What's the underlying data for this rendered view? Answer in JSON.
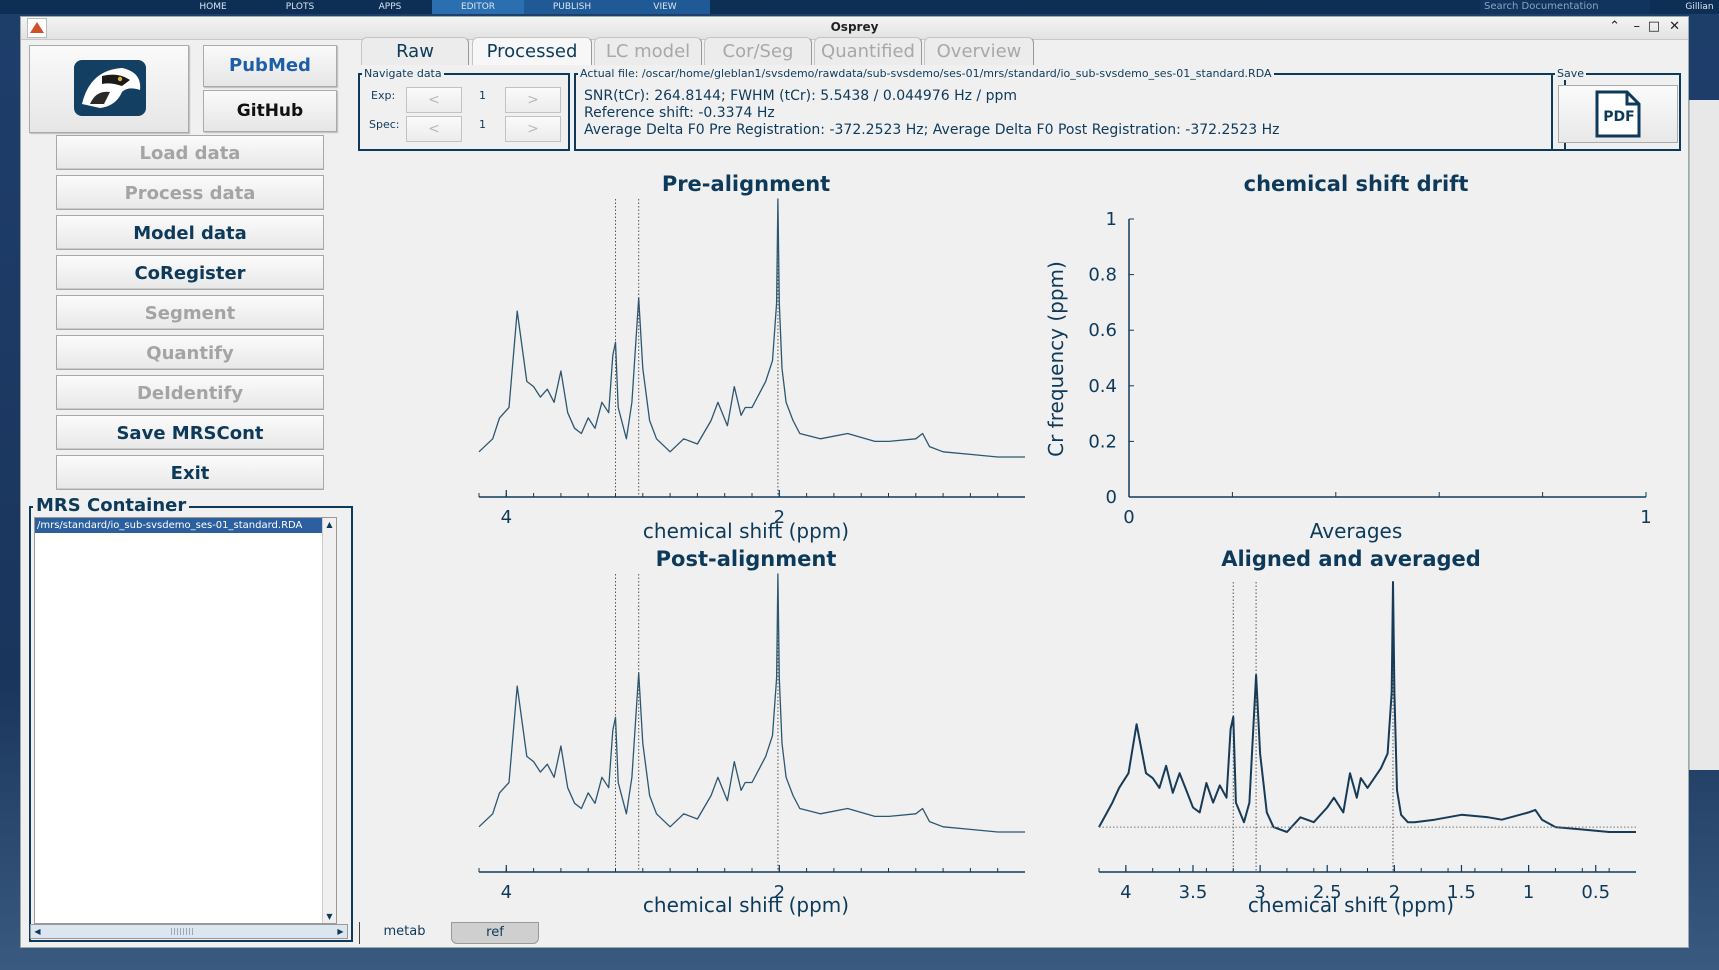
{
  "topbar": {
    "tabs": [
      "HOME",
      "PLOTS",
      "APPS",
      "EDITOR",
      "PUBLISH",
      "VIEW"
    ],
    "search_placeholder": "Search Documentation",
    "user": "Gillian"
  },
  "window": {
    "title": "Osprey"
  },
  "left_panel": {
    "logo_alt": "osprey-logo",
    "pubmed_label": "PubMed",
    "github_label": "GitHub",
    "buttons": [
      {
        "label": "Load data",
        "enabled": false
      },
      {
        "label": "Process data",
        "enabled": false
      },
      {
        "label": "Model data",
        "enabled": true
      },
      {
        "label": "CoRegister",
        "enabled": true
      },
      {
        "label": "Segment",
        "enabled": false
      },
      {
        "label": "Quantify",
        "enabled": false
      },
      {
        "label": "DeIdentify",
        "enabled": false
      },
      {
        "label": "Save MRSCont",
        "enabled": true
      },
      {
        "label": "Exit",
        "enabled": true
      }
    ],
    "container_title": "MRS Container",
    "container_item": "/mrs/standard/io_sub-svsdemo_ses-01_standard.RDA"
  },
  "tabs": [
    "Raw",
    "Processed",
    "LC model",
    "Cor/Seg",
    "Quantified",
    "Overview"
  ],
  "active_tab": "Processed",
  "navigate": {
    "title": "Navigate data",
    "exp_label": "Exp:",
    "exp_value": "1",
    "spec_label": "Spec:",
    "spec_value": "1",
    "prev": "<",
    "next": ">"
  },
  "info": {
    "title": "Actual file: /oscar/home/gleblan1/svsdemo/rawdata/sub-svsdemo/ses-01/mrs/standard/io_sub-svsdemo_ses-01_standard.RDA",
    "line1": "SNR(tCr): 264.8144; FWHM (tCr): 5.5438 / 0.044976 Hz / ppm",
    "line2": "Reference shift: -0.3374 Hz",
    "line3": "Average Delta F0 Pre Registration: -372.2523 Hz; Average Delta F0 Post Registration: -372.2523 Hz"
  },
  "save": {
    "title": "Save",
    "pdf_label": "PDF"
  },
  "bottom_tabs": [
    "metab",
    "ref"
  ],
  "chart_data": [
    {
      "type": "line",
      "title": "Pre-alignment",
      "xlabel": "chemical shift (ppm)",
      "ylabel": "",
      "x_reversed": true,
      "xlim": [
        4.2,
        0.2
      ],
      "xticks": [
        "4",
        "2"
      ],
      "reference_lines_ppm": [
        3.2,
        3.03,
        2.01
      ],
      "series": [
        {
          "x": [
            4.2,
            4.1,
            4.05,
            3.98,
            3.92,
            3.85,
            3.8,
            3.75,
            3.7,
            3.65,
            3.6,
            3.55,
            3.5,
            3.45,
            3.4,
            3.35,
            3.3,
            3.25,
            3.22,
            3.2,
            3.18,
            3.12,
            3.08,
            3.03,
            3.0,
            2.95,
            2.9,
            2.8,
            2.7,
            2.6,
            2.5,
            2.45,
            2.38,
            2.33,
            2.28,
            2.25,
            2.2,
            2.1,
            2.05,
            2.02,
            2.01,
            2.0,
            1.98,
            1.95,
            1.9,
            1.85,
            1.7,
            1.5,
            1.3,
            1.2,
            1.0,
            0.95,
            0.9,
            0.8,
            0.6,
            0.4,
            0.2
          ],
          "values": [
            0.03,
            0.08,
            0.16,
            0.2,
            0.57,
            0.3,
            0.28,
            0.24,
            0.27,
            0.22,
            0.34,
            0.18,
            0.12,
            0.1,
            0.16,
            0.12,
            0.22,
            0.18,
            0.4,
            0.45,
            0.2,
            0.08,
            0.22,
            0.62,
            0.35,
            0.15,
            0.08,
            0.03,
            0.08,
            0.06,
            0.15,
            0.22,
            0.13,
            0.28,
            0.17,
            0.2,
            0.2,
            0.3,
            0.38,
            0.6,
            1.0,
            0.6,
            0.35,
            0.22,
            0.15,
            0.1,
            0.08,
            0.1,
            0.07,
            0.07,
            0.08,
            0.1,
            0.05,
            0.03,
            0.02,
            0.01,
            0.01
          ]
        }
      ]
    },
    {
      "type": "line",
      "title": "chemical shift drift",
      "xlabel": "Averages",
      "ylabel": "Cr frequency (ppm)",
      "xlim": [
        0,
        1
      ],
      "ylim": [
        0,
        1
      ],
      "xticks": [
        "0",
        "1"
      ],
      "yticks": [
        "0",
        "0.2",
        "0.4",
        "0.6",
        "0.8",
        "1"
      ],
      "series": []
    },
    {
      "type": "line",
      "title": "Post-alignment",
      "xlabel": "chemical shift (ppm)",
      "ylabel": "",
      "x_reversed": true,
      "xlim": [
        4.2,
        0.2
      ],
      "xticks": [
        "4",
        "2"
      ],
      "reference_lines_ppm": [
        3.2,
        3.03,
        2.01
      ],
      "series": [
        {
          "x": [
            4.2,
            4.1,
            4.05,
            3.98,
            3.92,
            3.85,
            3.8,
            3.75,
            3.7,
            3.65,
            3.6,
            3.55,
            3.5,
            3.45,
            3.4,
            3.35,
            3.3,
            3.25,
            3.22,
            3.2,
            3.18,
            3.12,
            3.08,
            3.03,
            3.0,
            2.95,
            2.9,
            2.8,
            2.7,
            2.6,
            2.5,
            2.45,
            2.38,
            2.33,
            2.28,
            2.25,
            2.2,
            2.1,
            2.05,
            2.02,
            2.01,
            2.0,
            1.98,
            1.95,
            1.9,
            1.85,
            1.7,
            1.5,
            1.3,
            1.2,
            1.0,
            0.95,
            0.9,
            0.8,
            0.6,
            0.4,
            0.2
          ],
          "values": [
            0.03,
            0.08,
            0.16,
            0.2,
            0.57,
            0.3,
            0.28,
            0.24,
            0.27,
            0.22,
            0.34,
            0.18,
            0.12,
            0.1,
            0.16,
            0.12,
            0.22,
            0.18,
            0.4,
            0.45,
            0.2,
            0.08,
            0.22,
            0.62,
            0.35,
            0.15,
            0.08,
            0.03,
            0.08,
            0.06,
            0.15,
            0.22,
            0.13,
            0.28,
            0.17,
            0.2,
            0.2,
            0.3,
            0.38,
            0.6,
            1.0,
            0.6,
            0.35,
            0.22,
            0.15,
            0.1,
            0.08,
            0.1,
            0.07,
            0.07,
            0.08,
            0.1,
            0.05,
            0.03,
            0.02,
            0.01,
            0.01
          ]
        }
      ]
    },
    {
      "type": "line",
      "title": "Aligned and averaged",
      "xlabel": "chemical shift (ppm)",
      "ylabel": "",
      "x_reversed": true,
      "xlim": [
        4.2,
        0.2
      ],
      "xticks": [
        "4",
        "3.5",
        "3",
        "2.5",
        "2",
        "1.5",
        "1",
        "0.5"
      ],
      "reference_lines_ppm": [
        3.2,
        3.03,
        2.01
      ],
      "series": [
        {
          "x": [
            4.2,
            4.1,
            4.05,
            3.98,
            3.92,
            3.85,
            3.8,
            3.75,
            3.7,
            3.65,
            3.6,
            3.55,
            3.5,
            3.45,
            3.4,
            3.35,
            3.3,
            3.25,
            3.22,
            3.2,
            3.18,
            3.12,
            3.08,
            3.03,
            3.0,
            2.95,
            2.9,
            2.8,
            2.7,
            2.6,
            2.5,
            2.45,
            2.38,
            2.33,
            2.28,
            2.25,
            2.2,
            2.1,
            2.05,
            2.02,
            2.01,
            2.0,
            1.98,
            1.95,
            1.9,
            1.85,
            1.7,
            1.5,
            1.3,
            1.2,
            1.0,
            0.95,
            0.9,
            0.8,
            0.6,
            0.4,
            0.2
          ],
          "values": [
            0.0,
            0.1,
            0.16,
            0.22,
            0.42,
            0.22,
            0.2,
            0.16,
            0.25,
            0.14,
            0.22,
            0.15,
            0.08,
            0.06,
            0.18,
            0.1,
            0.17,
            0.12,
            0.4,
            0.45,
            0.1,
            0.02,
            0.1,
            0.62,
            0.3,
            0.06,
            0.0,
            -0.02,
            0.04,
            0.02,
            0.08,
            0.12,
            0.06,
            0.22,
            0.12,
            0.2,
            0.16,
            0.24,
            0.3,
            0.55,
            1.0,
            0.55,
            0.15,
            0.05,
            0.02,
            0.02,
            0.03,
            0.05,
            0.04,
            0.03,
            0.06,
            0.07,
            0.03,
            0.0,
            -0.01,
            -0.02,
            -0.02
          ]
        }
      ]
    }
  ]
}
